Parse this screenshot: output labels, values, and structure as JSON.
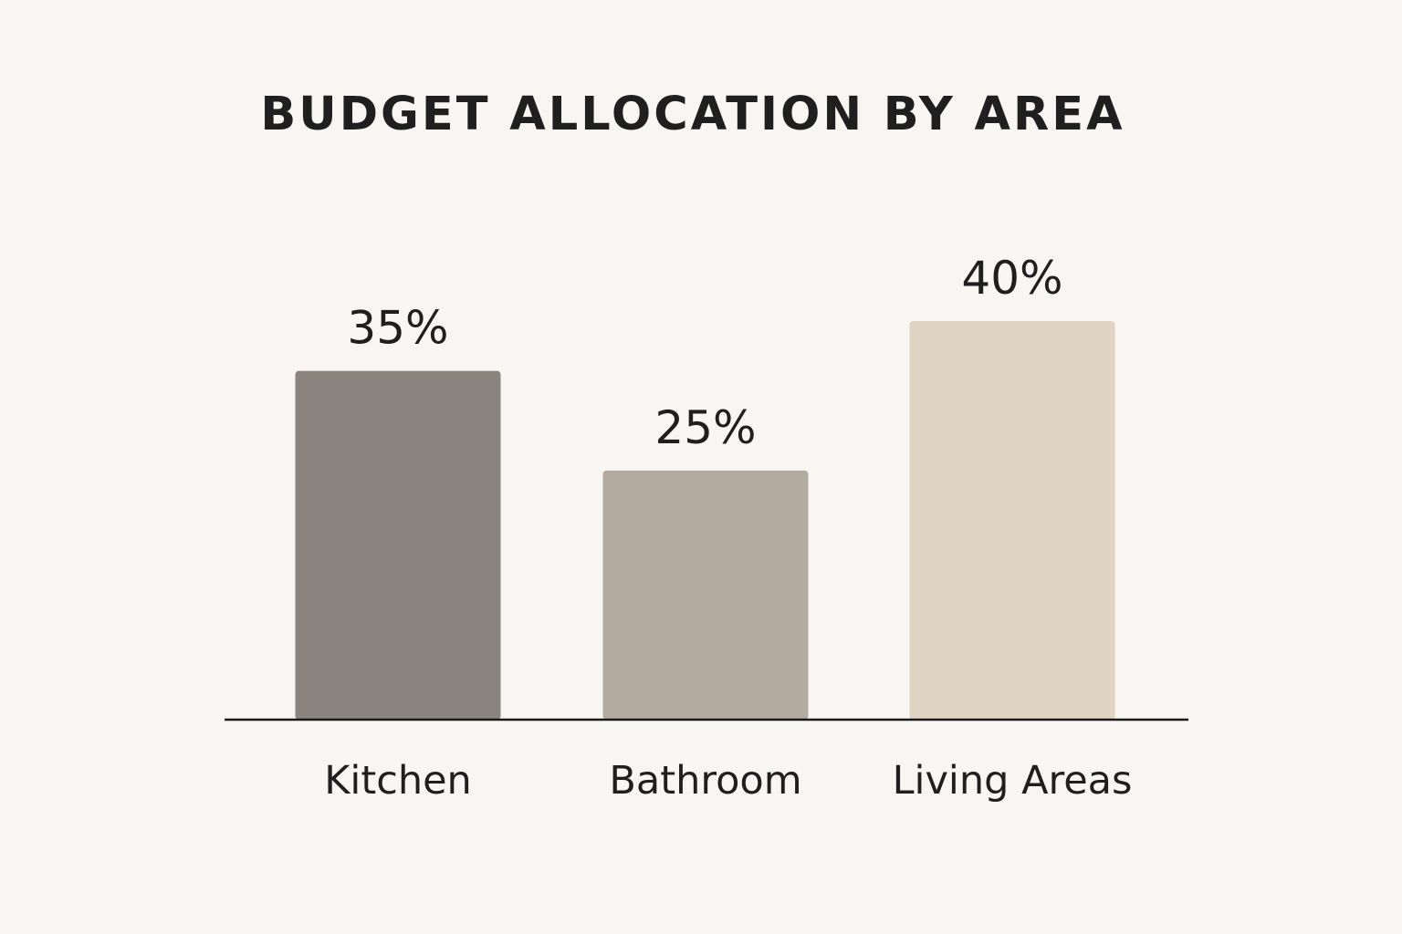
{
  "chart_data": {
    "type": "bar",
    "title": "BUDGET ALLOCATION BY AREA",
    "categories": [
      "Kitchen",
      "Bathroom",
      "Living Areas"
    ],
    "values": [
      35,
      25,
      40
    ],
    "value_labels": [
      "35%",
      "25%",
      "40%"
    ],
    "colors": [
      "#8a837e",
      "#b3aaa0",
      "#dfd3c3"
    ],
    "xlabel": "",
    "ylabel": "",
    "ylim": [
      0,
      40
    ],
    "grid": false,
    "legend": "none"
  }
}
